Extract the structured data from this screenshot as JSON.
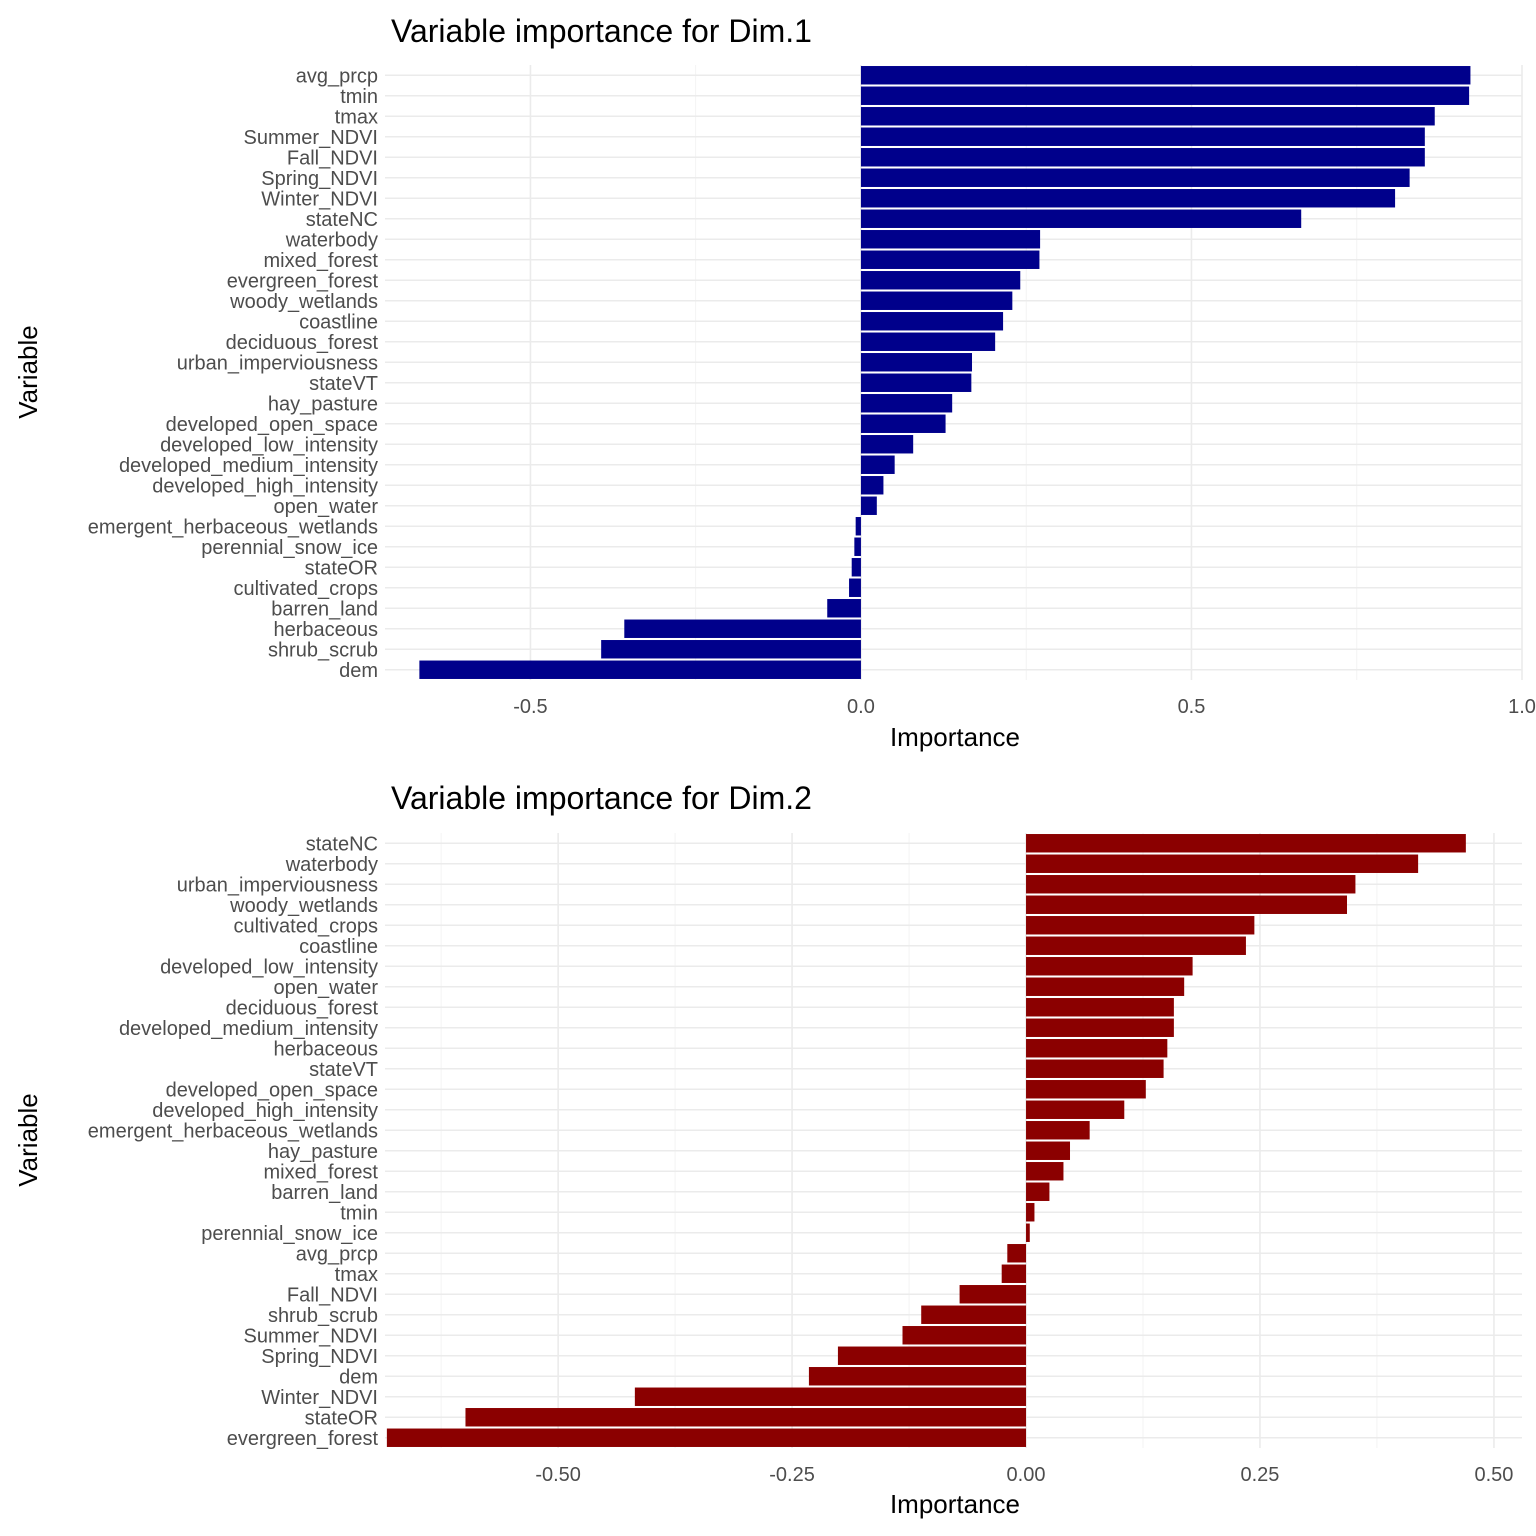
{
  "chart_data": [
    {
      "type": "bar",
      "orientation": "horizontal",
      "title": "Variable importance for Dim.1",
      "xlabel": "Importance",
      "ylabel": "Variable",
      "xlim": [
        -0.72,
        1.0
      ],
      "xticks": [
        -0.5,
        0.0,
        0.5,
        1.0
      ],
      "xtick_labels": [
        "-0.5",
        "0.0",
        "0.5",
        "1.0"
      ],
      "xticks_minor": [
        -0.25,
        0.25,
        0.75
      ],
      "grid": true,
      "bar_color": "#00008B",
      "categories": [
        "avg_prcp",
        "tmin",
        "tmax",
        "Summer_NDVI",
        "Fall_NDVI",
        "Spring_NDVI",
        "Winter_NDVI",
        "stateNC",
        "waterbody",
        "mixed_forest",
        "evergreen_forest",
        "woody_wetlands",
        "coastline",
        "deciduous_forest",
        "urban_imperviousness",
        "stateVT",
        "hay_pasture",
        "developed_open_space",
        "developed_low_intensity",
        "developed_medium_intensity",
        "developed_high_intensity",
        "open_water",
        "emergent_herbaceous_wetlands",
        "perennial_snow_ice",
        "stateOR",
        "cultivated_crops",
        "barren_land",
        "herbaceous",
        "shrub_scrub",
        "dem"
      ],
      "values": [
        0.922,
        0.92,
        0.868,
        0.853,
        0.853,
        0.83,
        0.808,
        0.666,
        0.271,
        0.27,
        0.241,
        0.229,
        0.215,
        0.203,
        0.168,
        0.167,
        0.138,
        0.128,
        0.079,
        0.051,
        0.034,
        0.024,
        -0.008,
        -0.01,
        -0.014,
        -0.018,
        -0.051,
        -0.358,
        -0.393,
        -0.668
      ]
    },
    {
      "type": "bar",
      "orientation": "horizontal",
      "title": "Variable importance for Dim.2",
      "xlabel": "Importance",
      "ylabel": "Variable",
      "xlim": [
        -0.685,
        0.53
      ],
      "xticks": [
        -0.5,
        -0.25,
        0.0,
        0.25,
        0.5
      ],
      "xtick_labels": [
        "-0.50",
        "-0.25",
        "0.00",
        "0.25",
        "0.50"
      ],
      "xticks_minor": [
        -0.625,
        -0.375,
        -0.125,
        0.125,
        0.375
      ],
      "grid": true,
      "bar_color": "#8B0000",
      "categories": [
        "stateNC",
        "waterbody",
        "urban_imperviousness",
        "woody_wetlands",
        "cultivated_crops",
        "coastline",
        "developed_low_intensity",
        "open_water",
        "deciduous_forest",
        "developed_medium_intensity",
        "herbaceous",
        "stateVT",
        "developed_open_space",
        "developed_high_intensity",
        "emergent_herbaceous_wetlands",
        "hay_pasture",
        "mixed_forest",
        "barren_land",
        "tmin",
        "perennial_snow_ice",
        "avg_prcp",
        "tmax",
        "Fall_NDVI",
        "shrub_scrub",
        "Summer_NDVI",
        "Spring_NDVI",
        "dem",
        "Winter_NDVI",
        "stateOR",
        "evergreen_forest"
      ],
      "values": [
        0.47,
        0.419,
        0.352,
        0.343,
        0.244,
        0.235,
        0.178,
        0.169,
        0.158,
        0.158,
        0.151,
        0.147,
        0.128,
        0.105,
        0.068,
        0.047,
        0.04,
        0.025,
        0.009,
        0.004,
        -0.02,
        -0.026,
        -0.071,
        -0.112,
        -0.132,
        -0.201,
        -0.232,
        -0.418,
        -0.599,
        -0.683
      ]
    }
  ]
}
